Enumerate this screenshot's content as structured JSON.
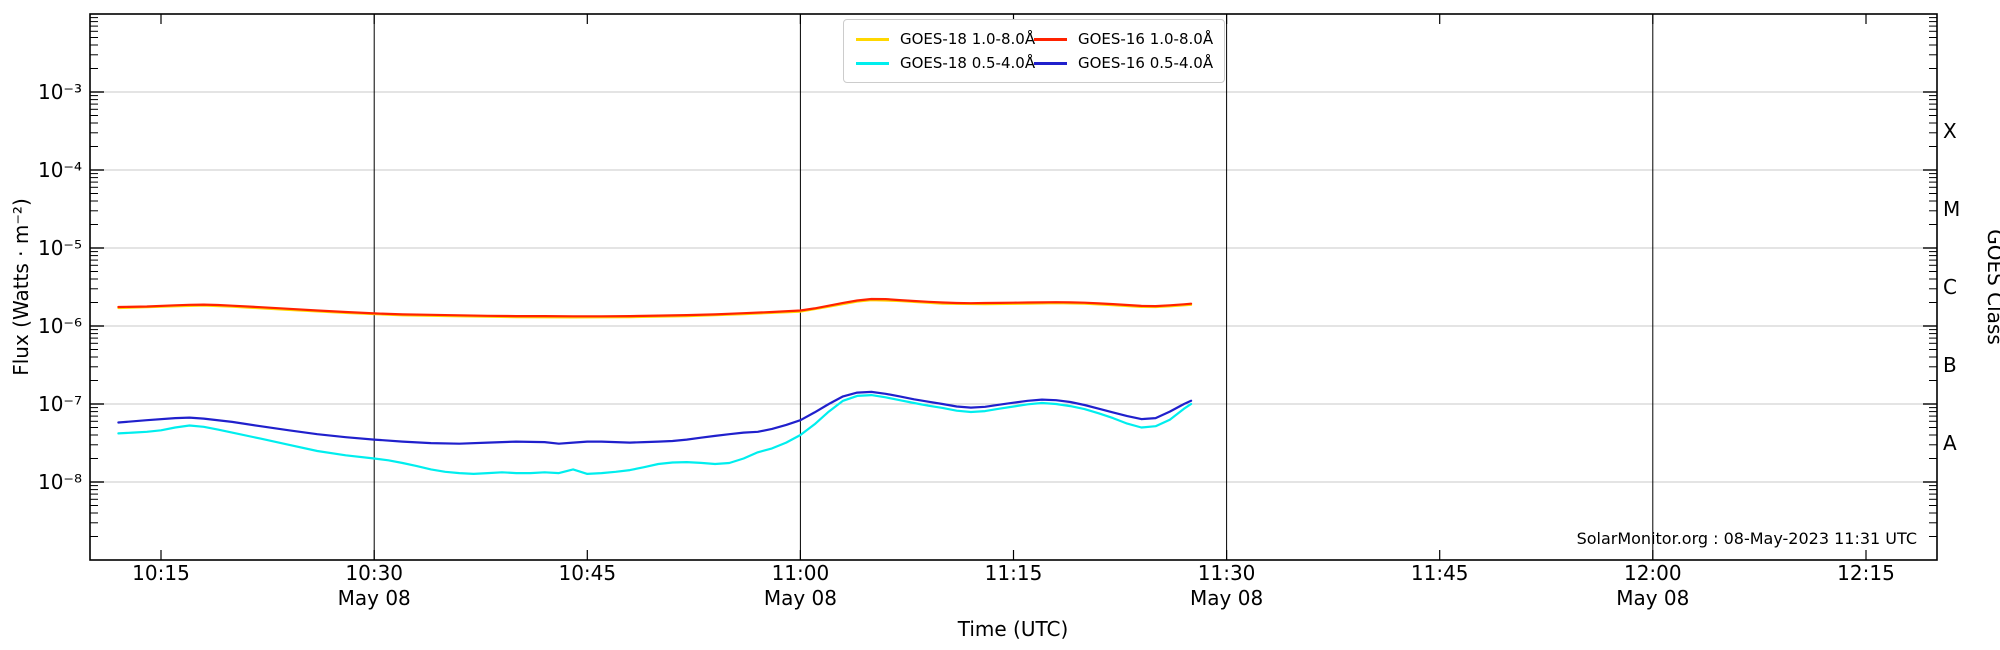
{
  "figure": {
    "watermark": "SolarMonitor.org : 08-May-2023 11:31 UTC"
  },
  "chart_data": {
    "type": "line",
    "title": "",
    "xlabel": "Time (UTC)",
    "ylabel": "Flux (Watts · m⁻²)",
    "y2label": "GOES Class",
    "y_scale": "log",
    "y_domain_log": [
      -9,
      -2
    ],
    "x_base_time": "10:00",
    "x_domain_minutes": [
      10,
      140
    ],
    "x_grid_minutes": [
      30,
      60,
      90,
      120
    ],
    "grid": "horizontal gray lines at each decade, vertical black lines each 30 min",
    "legend_position": "top center",
    "x_ticks": [
      {
        "minute": 15,
        "label": "10:15"
      },
      {
        "minute": 30,
        "label": "10:30",
        "day": "May 08"
      },
      {
        "minute": 45,
        "label": "10:45"
      },
      {
        "minute": 60,
        "label": "11:00",
        "day": "May 08"
      },
      {
        "minute": 75,
        "label": "11:15"
      },
      {
        "minute": 90,
        "label": "11:30",
        "day": "May 08"
      },
      {
        "minute": 105,
        "label": "11:45"
      },
      {
        "minute": 120,
        "label": "12:00",
        "day": "May 08"
      },
      {
        "minute": 135,
        "label": "12:15"
      }
    ],
    "y_ticks": [
      {
        "exp": -3,
        "label": "10⁻³"
      },
      {
        "exp": -4,
        "label": "10⁻⁴"
      },
      {
        "exp": -5,
        "label": "10⁻⁵"
      },
      {
        "exp": -6,
        "label": "10⁻⁶"
      },
      {
        "exp": -7,
        "label": "10⁻⁷"
      },
      {
        "exp": -8,
        "label": "10⁻⁸"
      }
    ],
    "goes_classes": [
      {
        "label": "X",
        "log_center": -3.5
      },
      {
        "label": "M",
        "log_center": -4.5
      },
      {
        "label": "C",
        "log_center": -5.5
      },
      {
        "label": "B",
        "log_center": -6.5
      },
      {
        "label": "A",
        "log_center": -7.5
      }
    ],
    "series": [
      {
        "name": "GOES-18 1.0-8.0Å",
        "color": "#ffd700",
        "points": [
          [
            12,
            1.7e-06
          ],
          [
            16,
            1.79e-06
          ],
          [
            18,
            1.83e-06
          ],
          [
            20,
            1.77e-06
          ],
          [
            24,
            1.61e-06
          ],
          [
            28,
            1.47e-06
          ],
          [
            32,
            1.37e-06
          ],
          [
            36,
            1.33e-06
          ],
          [
            40,
            1.3e-06
          ],
          [
            44,
            1.29e-06
          ],
          [
            48,
            1.3e-06
          ],
          [
            52,
            1.34e-06
          ],
          [
            56,
            1.42e-06
          ],
          [
            60,
            1.53e-06
          ],
          [
            62,
            1.77e-06
          ],
          [
            64,
            2.06e-06
          ],
          [
            65,
            2.15e-06
          ],
          [
            67,
            2.09e-06
          ],
          [
            70,
            1.94e-06
          ],
          [
            73,
            1.91e-06
          ],
          [
            76,
            1.94e-06
          ],
          [
            78,
            1.96e-06
          ],
          [
            80,
            1.93e-06
          ],
          [
            82,
            1.85e-06
          ],
          [
            84,
            1.76e-06
          ],
          [
            85,
            1.75e-06
          ],
          [
            86,
            1.79e-06
          ],
          [
            87.5,
            1.87e-06
          ]
        ]
      },
      {
        "name": "GOES-18 0.5-4.0Å",
        "color": "#00eeee",
        "points": [
          [
            12,
            4.2e-08
          ],
          [
            13,
            4.3e-08
          ],
          [
            14,
            4.4e-08
          ],
          [
            15,
            4.6e-08
          ],
          [
            16,
            5e-08
          ],
          [
            17,
            5.3e-08
          ],
          [
            18,
            5.1e-08
          ],
          [
            19,
            4.7e-08
          ],
          [
            20,
            4.3e-08
          ],
          [
            22,
            3.6e-08
          ],
          [
            24,
            3e-08
          ],
          [
            26,
            2.5e-08
          ],
          [
            28,
            2.2e-08
          ],
          [
            30,
            2e-08
          ],
          [
            31,
            1.9e-08
          ],
          [
            32,
            1.75e-08
          ],
          [
            33,
            1.6e-08
          ],
          [
            34,
            1.45e-08
          ],
          [
            35,
            1.35e-08
          ],
          [
            36,
            1.3e-08
          ],
          [
            37,
            1.27e-08
          ],
          [
            38,
            1.3e-08
          ],
          [
            39,
            1.33e-08
          ],
          [
            40,
            1.3e-08
          ],
          [
            41,
            1.3e-08
          ],
          [
            42,
            1.33e-08
          ],
          [
            43,
            1.3e-08
          ],
          [
            44,
            1.45e-08
          ],
          [
            45,
            1.27e-08
          ],
          [
            46,
            1.3e-08
          ],
          [
            47,
            1.35e-08
          ],
          [
            48,
            1.42e-08
          ],
          [
            49,
            1.55e-08
          ],
          [
            50,
            1.7e-08
          ],
          [
            51,
            1.78e-08
          ],
          [
            52,
            1.8e-08
          ],
          [
            53,
            1.76e-08
          ],
          [
            54,
            1.7e-08
          ],
          [
            55,
            1.75e-08
          ],
          [
            56,
            2e-08
          ],
          [
            57,
            2.4e-08
          ],
          [
            58,
            2.7e-08
          ],
          [
            59,
            3.2e-08
          ],
          [
            60,
            4e-08
          ],
          [
            61,
            5.5e-08
          ],
          [
            62,
            8e-08
          ],
          [
            63,
            1.1e-07
          ],
          [
            64,
            1.27e-07
          ],
          [
            65,
            1.3e-07
          ],
          [
            66,
            1.22e-07
          ],
          [
            67,
            1.12e-07
          ],
          [
            68,
            1.03e-07
          ],
          [
            69,
            9.5e-08
          ],
          [
            70,
            8.9e-08
          ],
          [
            71,
            8.2e-08
          ],
          [
            72,
            7.9e-08
          ],
          [
            73,
            8.1e-08
          ],
          [
            74,
            8.7e-08
          ],
          [
            75,
            9.3e-08
          ],
          [
            76,
            9.9e-08
          ],
          [
            77,
            1.03e-07
          ],
          [
            78,
            1e-07
          ],
          [
            79,
            9.4e-08
          ],
          [
            80,
            8.6e-08
          ],
          [
            81,
            7.6e-08
          ],
          [
            82,
            6.6e-08
          ],
          [
            83,
            5.6e-08
          ],
          [
            84,
            5e-08
          ],
          [
            85,
            5.2e-08
          ],
          [
            86,
            6.3e-08
          ],
          [
            87,
            8.7e-08
          ],
          [
            87.5,
            1e-07
          ]
        ]
      },
      {
        "name": "GOES-16 1.0-8.0Å",
        "color": "#ff2200",
        "points": [
          [
            12,
            1.75e-06
          ],
          [
            14,
            1.78e-06
          ],
          [
            16,
            1.84e-06
          ],
          [
            17,
            1.87e-06
          ],
          [
            18,
            1.88e-06
          ],
          [
            19,
            1.86e-06
          ],
          [
            20,
            1.82e-06
          ],
          [
            22,
            1.74e-06
          ],
          [
            24,
            1.66e-06
          ],
          [
            26,
            1.58e-06
          ],
          [
            28,
            1.51e-06
          ],
          [
            30,
            1.45e-06
          ],
          [
            32,
            1.41e-06
          ],
          [
            34,
            1.39e-06
          ],
          [
            36,
            1.37e-06
          ],
          [
            38,
            1.35e-06
          ],
          [
            40,
            1.34e-06
          ],
          [
            42,
            1.34e-06
          ],
          [
            44,
            1.33e-06
          ],
          [
            46,
            1.33e-06
          ],
          [
            48,
            1.34e-06
          ],
          [
            50,
            1.36e-06
          ],
          [
            52,
            1.38e-06
          ],
          [
            54,
            1.41e-06
          ],
          [
            56,
            1.46e-06
          ],
          [
            58,
            1.51e-06
          ],
          [
            60,
            1.58e-06
          ],
          [
            61,
            1.68e-06
          ],
          [
            62,
            1.82e-06
          ],
          [
            63,
            1.98e-06
          ],
          [
            64,
            2.12e-06
          ],
          [
            65,
            2.22e-06
          ],
          [
            66,
            2.21e-06
          ],
          [
            67,
            2.15e-06
          ],
          [
            68,
            2.09e-06
          ],
          [
            69,
            2.04e-06
          ],
          [
            70,
            2e-06
          ],
          [
            71,
            1.97e-06
          ],
          [
            72,
            1.96e-06
          ],
          [
            73,
            1.97e-06
          ],
          [
            74,
            1.98e-06
          ],
          [
            75,
            1.99e-06
          ],
          [
            76,
            2e-06
          ],
          [
            77,
            2.01e-06
          ],
          [
            78,
            2.02e-06
          ],
          [
            79,
            2.01e-06
          ],
          [
            80,
            1.99e-06
          ],
          [
            81,
            1.95e-06
          ],
          [
            82,
            1.91e-06
          ],
          [
            83,
            1.86e-06
          ],
          [
            84,
            1.81e-06
          ],
          [
            85,
            1.8e-06
          ],
          [
            86,
            1.84e-06
          ],
          [
            87,
            1.9e-06
          ],
          [
            87.5,
            1.93e-06
          ]
        ]
      },
      {
        "name": "GOES-16 0.5-4.0Å",
        "color": "#2020cc",
        "points": [
          [
            12,
            5.8e-08
          ],
          [
            14,
            6.2e-08
          ],
          [
            16,
            6.6e-08
          ],
          [
            17,
            6.7e-08
          ],
          [
            18,
            6.5e-08
          ],
          [
            20,
            5.9e-08
          ],
          [
            22,
            5.2e-08
          ],
          [
            24,
            4.6e-08
          ],
          [
            26,
            4.1e-08
          ],
          [
            28,
            3.75e-08
          ],
          [
            30,
            3.5e-08
          ],
          [
            32,
            3.3e-08
          ],
          [
            34,
            3.15e-08
          ],
          [
            36,
            3.1e-08
          ],
          [
            38,
            3.2e-08
          ],
          [
            40,
            3.3e-08
          ],
          [
            42,
            3.25e-08
          ],
          [
            43,
            3.1e-08
          ],
          [
            44,
            3.2e-08
          ],
          [
            45,
            3.3e-08
          ],
          [
            46,
            3.3e-08
          ],
          [
            47,
            3.25e-08
          ],
          [
            48,
            3.2e-08
          ],
          [
            49,
            3.25e-08
          ],
          [
            50,
            3.3e-08
          ],
          [
            51,
            3.35e-08
          ],
          [
            52,
            3.5e-08
          ],
          [
            53,
            3.7e-08
          ],
          [
            54,
            3.9e-08
          ],
          [
            55,
            4.1e-08
          ],
          [
            56,
            4.3e-08
          ],
          [
            57,
            4.4e-08
          ],
          [
            58,
            4.8e-08
          ],
          [
            59,
            5.4e-08
          ],
          [
            60,
            6.2e-08
          ],
          [
            61,
            7.8e-08
          ],
          [
            62,
            1e-07
          ],
          [
            63,
            1.25e-07
          ],
          [
            64,
            1.4e-07
          ],
          [
            65,
            1.43e-07
          ],
          [
            66,
            1.35e-07
          ],
          [
            67,
            1.25e-07
          ],
          [
            68,
            1.15e-07
          ],
          [
            69,
            1.07e-07
          ],
          [
            70,
            1e-07
          ],
          [
            71,
            9.3e-08
          ],
          [
            72,
            9e-08
          ],
          [
            73,
            9.2e-08
          ],
          [
            74,
            9.8e-08
          ],
          [
            75,
            1.04e-07
          ],
          [
            76,
            1.1e-07
          ],
          [
            77,
            1.14e-07
          ],
          [
            78,
            1.12e-07
          ],
          [
            79,
            1.06e-07
          ],
          [
            80,
            9.7e-08
          ],
          [
            81,
            8.7e-08
          ],
          [
            82,
            7.8e-08
          ],
          [
            83,
            7e-08
          ],
          [
            84,
            6.4e-08
          ],
          [
            85,
            6.6e-08
          ],
          [
            86,
            8e-08
          ],
          [
            87,
            1e-07
          ],
          [
            87.5,
            1.1e-07
          ]
        ]
      }
    ]
  }
}
